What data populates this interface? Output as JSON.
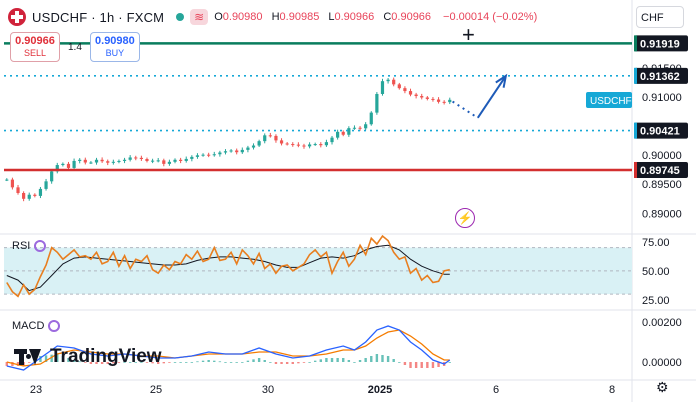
{
  "header": {
    "symbol": "USDCHF",
    "interval": "1h",
    "exchange": "FXCM",
    "separator": "·",
    "ohlc": {
      "o_label": "O",
      "o": "0.90980",
      "h_label": "H",
      "h": "0.90985",
      "l_label": "L",
      "l": "0.90966",
      "c_label": "C",
      "c": "0.90966"
    },
    "change": "−0.00014 (−0.02%)"
  },
  "trade": {
    "sell_price": "0.90966",
    "sell_label": "SELL",
    "spread": "1.4",
    "buy_price": "0.90980",
    "buy_label": "BUY"
  },
  "currency_selector": "CHF",
  "branding": "TradingView",
  "colors": {
    "up": "#26a69a",
    "down": "#ef5350",
    "rsi": "#e87e1f",
    "rsi_ma": "#131722",
    "macd": "#2962ff",
    "signal": "#f57c00",
    "green_level": "#0a7d5e",
    "red_level": "#d32f2f",
    "cyan_level": "#16a8d6",
    "arrow": "#1e5bb8",
    "rsi_band": "#d9f1f5"
  },
  "chart_data": [
    {
      "type": "candlestick",
      "title": "USDCHF · 1h · FXCM",
      "xlabel": "",
      "ylabel": "",
      "x_ticks": [
        "23",
        "25",
        "30",
        "2025",
        "6",
        "8"
      ],
      "y_ticks": [
        "0.91500",
        "0.91000",
        "0.90000",
        "0.89500",
        "0.89000"
      ],
      "ylim": [
        0.8868,
        0.9208
      ],
      "grid": false,
      "close_path": [
        [
          0,
          0.8958
        ],
        [
          1.2,
          0.8942
        ],
        [
          2,
          0.8935
        ],
        [
          3,
          0.8925
        ],
        [
          4,
          0.8932
        ],
        [
          5,
          0.893
        ],
        [
          6.5,
          0.8948
        ],
        [
          7.5,
          0.8962
        ],
        [
          8.5,
          0.8982
        ],
        [
          10,
          0.8985
        ],
        [
          11,
          0.8978
        ],
        [
          12,
          0.899
        ],
        [
          13,
          0.8992
        ],
        [
          14.5,
          0.8985
        ],
        [
          16,
          0.8992
        ],
        [
          18,
          0.8987
        ],
        [
          20,
          0.899
        ],
        [
          21.5,
          0.8993
        ],
        [
          22,
          0.8996
        ],
        [
          23.5,
          0.8995
        ],
        [
          25,
          0.899
        ],
        [
          27,
          0.8991
        ],
        [
          28,
          0.8985
        ],
        [
          30,
          0.8992
        ],
        [
          31,
          0.899
        ],
        [
          33,
          0.8997
        ],
        [
          34.5,
          0.9001
        ],
        [
          36.5,
          0.9
        ],
        [
          38.5,
          0.9006
        ],
        [
          40,
          0.9008
        ],
        [
          41,
          0.9005
        ],
        [
          42.5,
          0.9011
        ],
        [
          43.5,
          0.9015
        ],
        [
          44.5,
          0.9018
        ],
        [
          45.5,
          0.903
        ],
        [
          46.5,
          0.9038
        ],
        [
          47.5,
          0.9028
        ],
        [
          49,
          0.902
        ],
        [
          51,
          0.9018
        ],
        [
          53,
          0.9015
        ],
        [
          54.5,
          0.902
        ],
        [
          56,
          0.9017
        ],
        [
          57.5,
          0.9025
        ],
        [
          59,
          0.904
        ],
        [
          60,
          0.9035
        ],
        [
          61.5,
          0.9052
        ],
        [
          62.5,
          0.9042
        ],
        [
          63.5,
          0.905
        ],
        [
          64.5,
          0.9056
        ],
        [
          65.5,
          0.909
        ],
        [
          66.5,
          0.912
        ],
        [
          67.5,
          0.9134
        ],
        [
          68.5,
          0.9125
        ],
        [
          69.5,
          0.9118
        ],
        [
          70.5,
          0.9112
        ],
        [
          71.5,
          0.9108
        ],
        [
          72.5,
          0.91
        ],
        [
          73.5,
          0.9103
        ],
        [
          74.5,
          0.9095
        ],
        [
          75.5,
          0.9098
        ],
        [
          76.5,
          0.9093
        ],
        [
          77.5,
          0.909
        ],
        [
          78.5,
          0.9092
        ],
        [
          79.5,
          0.9098
        ]
      ],
      "price_levels": [
        {
          "label": "0.91919",
          "value": 0.91919,
          "style": "solid",
          "color": "#0a7d5e"
        },
        {
          "label": "0.91362",
          "value": 0.91362,
          "style": "dotted",
          "color": "#16a8d6"
        },
        {
          "label": "0.90421",
          "value": 0.90421,
          "style": "dotted",
          "color": "#16a8d6"
        },
        {
          "label": "0.89745",
          "value": 0.89745,
          "style": "solid",
          "color": "#d32f2f"
        }
      ],
      "price_tag": {
        "label": "USDCHF",
        "value": 0.9098
      },
      "projection": {
        "dotted_path": [
          [
            79.5,
            0.9092
          ],
          [
            84,
            0.9064
          ]
        ],
        "arrow_path": [
          [
            84,
            0.9064
          ],
          [
            89,
            0.9136
          ]
        ]
      }
    },
    {
      "type": "line",
      "title": "RSI",
      "y_ticks": [
        "75.00",
        "50.00",
        "25.00"
      ],
      "ylim": [
        18,
        80
      ],
      "band": [
        30,
        70
      ],
      "series": [
        {
          "name": "RSI",
          "values": [
            [
              0,
              40
            ],
            [
              1,
              32
            ],
            [
              2,
              28
            ],
            [
              3,
              38
            ],
            [
              4,
              30
            ],
            [
              5,
              34
            ],
            [
              6,
              45
            ],
            [
              7,
              55
            ],
            [
              8,
              70
            ],
            [
              9,
              66
            ],
            [
              10,
              60
            ],
            [
              11,
              64
            ],
            [
              12,
              68
            ],
            [
              13,
              62
            ],
            [
              14,
              63
            ],
            [
              15,
              60
            ],
            [
              16,
              66
            ],
            [
              17,
              56
            ],
            [
              18,
              58
            ],
            [
              19,
              66
            ],
            [
              20,
              54
            ],
            [
              21,
              63
            ],
            [
              22,
              52
            ],
            [
              23,
              60
            ],
            [
              24,
              58
            ],
            [
              25,
              63
            ],
            [
              26,
              51
            ],
            [
              27,
              48
            ],
            [
              28,
              55
            ],
            [
              29,
              51
            ],
            [
              30,
              58
            ],
            [
              31,
              56
            ],
            [
              32,
              64
            ],
            [
              33,
              60
            ],
            [
              34,
              67
            ],
            [
              35,
              58
            ],
            [
              36,
              60
            ],
            [
              37,
              70
            ],
            [
              38,
              59
            ],
            [
              39,
              60
            ],
            [
              40,
              66
            ],
            [
              41,
              56
            ],
            [
              42,
              68
            ],
            [
              43,
              63
            ],
            [
              44,
              56
            ],
            [
              45,
              65
            ],
            [
              46,
              52
            ],
            [
              47,
              56
            ],
            [
              48,
              48
            ],
            [
              49,
              54
            ],
            [
              50,
              55
            ],
            [
              51,
              50
            ],
            [
              52,
              53
            ],
            [
              53,
              56
            ],
            [
              54,
              64
            ],
            [
              55,
              68
            ],
            [
              56,
              62
            ],
            [
              57,
              66
            ],
            [
              58,
              48
            ],
            [
              59,
              58
            ],
            [
              60,
              66
            ],
            [
              61,
              54
            ],
            [
              62,
              60
            ],
            [
              63,
              72
            ],
            [
              64,
              64
            ],
            [
              65,
              78
            ],
            [
              66,
              73
            ],
            [
              67,
              80
            ],
            [
              68,
              76
            ],
            [
              69,
              66
            ],
            [
              70,
              60
            ],
            [
              71,
              62
            ],
            [
              72,
              48
            ],
            [
              73,
              52
            ],
            [
              74,
              42
            ],
            [
              75,
              46
            ],
            [
              76,
              40
            ],
            [
              77,
              41
            ],
            [
              78,
              50
            ],
            [
              79,
              51
            ]
          ]
        },
        {
          "name": "RSI MA",
          "values": [
            [
              0,
              46
            ],
            [
              2,
              42
            ],
            [
              4,
              33
            ],
            [
              6,
              36
            ],
            [
              8,
              46
            ],
            [
              10,
              56
            ],
            [
              12,
              61
            ],
            [
              14,
              62
            ],
            [
              16,
              61
            ],
            [
              18,
              60
            ],
            [
              20,
              59
            ],
            [
              22,
              58
            ],
            [
              24,
              57
            ],
            [
              26,
              56
            ],
            [
              28,
              55
            ],
            [
              30,
              55
            ],
            [
              32,
              56
            ],
            [
              34,
              59
            ],
            [
              36,
              61
            ],
            [
              38,
              62
            ],
            [
              40,
              62
            ],
            [
              42,
              61
            ],
            [
              44,
              60
            ],
            [
              46,
              58
            ],
            [
              48,
              55
            ],
            [
              50,
              53
            ],
            [
              52,
              53
            ],
            [
              54,
              57
            ],
            [
              56,
              61
            ],
            [
              58,
              62
            ],
            [
              60,
              61
            ],
            [
              62,
              63
            ],
            [
              64,
              68
            ],
            [
              66,
              71
            ],
            [
              68,
              72
            ],
            [
              70,
              68
            ],
            [
              72,
              60
            ],
            [
              74,
              54
            ],
            [
              76,
              50
            ],
            [
              78,
              47
            ],
            [
              79,
              47
            ]
          ]
        }
      ]
    },
    {
      "type": "line",
      "title": "MACD",
      "y_ticks": [
        "0.00200",
        "0.00000"
      ],
      "ylim": [
        -0.0008,
        0.0025
      ],
      "series": [
        {
          "name": "MACD",
          "values": [
            [
              0,
              -0.0002
            ],
            [
              3,
              -0.0004
            ],
            [
              6,
              0.0002
            ],
            [
              9,
              0.0008
            ],
            [
              12,
              0.0007
            ],
            [
              15,
              0.0004
            ],
            [
              18,
              0.0003
            ],
            [
              21,
              0.0004
            ],
            [
              24,
              0.0003
            ],
            [
              27,
              0.0002
            ],
            [
              30,
              0.0002
            ],
            [
              33,
              0.0003
            ],
            [
              36,
              0.0005
            ],
            [
              39,
              0.0004
            ],
            [
              42,
              0.0004
            ],
            [
              45,
              0.0007
            ],
            [
              48,
              0.0004
            ],
            [
              51,
              0.0002
            ],
            [
              54,
              0.0003
            ],
            [
              57,
              0.0006
            ],
            [
              60,
              0.0008
            ],
            [
              62,
              0.0006
            ],
            [
              64,
              0.001
            ],
            [
              66,
              0.0016
            ],
            [
              68,
              0.0018
            ],
            [
              70,
              0.0016
            ],
            [
              72,
              0.001
            ],
            [
              74,
              0.0006
            ],
            [
              76,
              0.0001
            ],
            [
              78,
              -0.0001
            ],
            [
              79,
              0.0001
            ]
          ]
        },
        {
          "name": "Signal",
          "values": [
            [
              0,
              0.0
            ],
            [
              3,
              -0.0002
            ],
            [
              6,
              -0.0001
            ],
            [
              9,
              0.0004
            ],
            [
              12,
              0.0006
            ],
            [
              15,
              0.0005
            ],
            [
              18,
              0.0004
            ],
            [
              21,
              0.0004
            ],
            [
              24,
              0.0003
            ],
            [
              27,
              0.0003
            ],
            [
              30,
              0.0002
            ],
            [
              33,
              0.0003
            ],
            [
              36,
              0.0004
            ],
            [
              39,
              0.0004
            ],
            [
              42,
              0.0004
            ],
            [
              45,
              0.0005
            ],
            [
              48,
              0.0005
            ],
            [
              51,
              0.0003
            ],
            [
              54,
              0.0003
            ],
            [
              57,
              0.0004
            ],
            [
              60,
              0.0006
            ],
            [
              62,
              0.0006
            ],
            [
              64,
              0.0008
            ],
            [
              66,
              0.0012
            ],
            [
              68,
              0.0015
            ],
            [
              70,
              0.0016
            ],
            [
              72,
              0.0013
            ],
            [
              74,
              0.0009
            ],
            [
              76,
              0.0004
            ],
            [
              78,
              0.0001
            ],
            [
              79,
              0.0001
            ]
          ]
        }
      ]
    }
  ]
}
